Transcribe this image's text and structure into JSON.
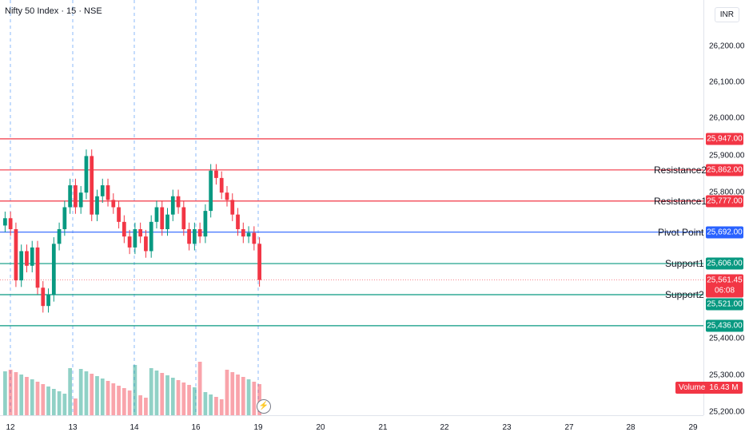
{
  "title": "Nifty 50 Index · 15 · NSE",
  "currency": "INR",
  "price_axis": [
    "26,200.00",
    "26,100.00",
    "26,000.00",
    "25,900.00",
    "25,800.00",
    "25,400.00",
    "25,300.00",
    "25,200.00"
  ],
  "levels": [
    {
      "name": "",
      "value": "25,947.00",
      "price": 25947,
      "color": "#f23645"
    },
    {
      "name": "Resistance2",
      "value": "25,862.00",
      "price": 25862,
      "color": "#f23645"
    },
    {
      "name": "Resistance1",
      "value": "25,777.00",
      "price": 25777,
      "color": "#f23645"
    },
    {
      "name": "Pivot Point",
      "value": "25,692.00",
      "price": 25692,
      "color": "#2962ff"
    },
    {
      "name": "Support1",
      "value": "25,606.00",
      "price": 25606,
      "color": "#089981"
    },
    {
      "name": "Support2",
      "value": "25,521.00",
      "price": 25521,
      "color": "#089981"
    },
    {
      "name": "",
      "value": "25,436.00",
      "price": 25436,
      "color": "#089981"
    }
  ],
  "last_price": {
    "value": "25,561.45",
    "countdown": "06:08",
    "price": 25561.45
  },
  "volume": {
    "label": "Volume",
    "value": "16.43 M"
  },
  "x_axis": [
    "12",
    "13",
    "14",
    "16",
    "19",
    "20",
    "21",
    "22",
    "23",
    "27",
    "28",
    "29"
  ],
  "chart_data": {
    "type": "candlestick",
    "series_close": [
      25730,
      25700,
      25560,
      25640,
      25600,
      25650,
      25540,
      25490,
      25520,
      25660,
      25700,
      25760,
      25820,
      25760,
      25800,
      25900,
      25740,
      25790,
      25820,
      25780,
      25760,
      25720,
      25680,
      25650,
      25700,
      25680,
      25640,
      25720,
      25760,
      25700,
      25740,
      25790,
      25760,
      25700,
      25660,
      25700,
      25680,
      25750,
      25860,
      25840,
      25800,
      25780,
      25740,
      25700,
      25680,
      25690,
      25660,
      25561
    ],
    "vol_labels": [
      "Volume"
    ]
  }
}
